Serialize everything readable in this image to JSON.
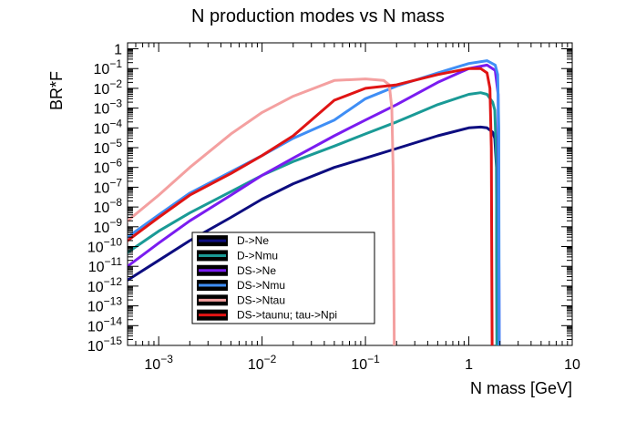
{
  "chart_data": {
    "type": "line",
    "title": "N production modes vs N mass",
    "xlabel": "N mass [GeV]",
    "ylabel": "BR*F",
    "xscale": "log",
    "yscale": "log",
    "xlim": [
      0.0005,
      10
    ],
    "ylim": [
      1e-15,
      2
    ],
    "grid": false,
    "legend_position": "bottom-center",
    "x_ticks": [
      {
        "value": 0.001,
        "base": "10",
        "exp": "−3"
      },
      {
        "value": 0.01,
        "base": "10",
        "exp": "−2"
      },
      {
        "value": 0.1,
        "base": "10",
        "exp": "−1"
      },
      {
        "value": 1,
        "base": "1",
        "exp": ""
      },
      {
        "value": 10,
        "base": "10",
        "exp": ""
      }
    ],
    "y_ticks": [
      {
        "value": 1,
        "base": "1",
        "exp": ""
      },
      {
        "value": 0.1,
        "base": "10",
        "exp": "−1"
      },
      {
        "value": 0.01,
        "base": "10",
        "exp": "−2"
      },
      {
        "value": 0.001,
        "base": "10",
        "exp": "−3"
      },
      {
        "value": 0.0001,
        "base": "10",
        "exp": "−4"
      },
      {
        "value": 1e-05,
        "base": "10",
        "exp": "−5"
      },
      {
        "value": 1e-06,
        "base": "10",
        "exp": "−6"
      },
      {
        "value": 1e-07,
        "base": "10",
        "exp": "−7"
      },
      {
        "value": 1e-08,
        "base": "10",
        "exp": "−8"
      },
      {
        "value": 1e-09,
        "base": "10",
        "exp": "−9"
      },
      {
        "value": 1e-10,
        "base": "10",
        "exp": "−10"
      },
      {
        "value": 1e-11,
        "base": "10",
        "exp": "−11"
      },
      {
        "value": 1e-12,
        "base": "10",
        "exp": "−12"
      },
      {
        "value": 1e-13,
        "base": "10",
        "exp": "−13"
      },
      {
        "value": 1e-14,
        "base": "10",
        "exp": "−14"
      },
      {
        "value": 1e-15,
        "base": "10",
        "exp": "−15"
      }
    ],
    "series": [
      {
        "name": "D->Ne",
        "color": "#0d0d80",
        "x": [
          0.0005,
          0.001,
          0.002,
          0.005,
          0.01,
          0.02,
          0.05,
          0.1,
          0.2,
          0.5,
          1.0,
          1.3,
          1.5,
          1.7,
          1.78,
          1.85,
          1.87
        ],
        "y": [
          2e-12,
          2e-11,
          2e-10,
          3e-09,
          2.5e-08,
          1.5e-07,
          1e-06,
          3e-06,
          9e-06,
          4e-05,
          0.0001,
          0.00011,
          0.0001,
          6e-05,
          3e-05,
          1e-06,
          1e-15
        ]
      },
      {
        "name": "D->Nmu",
        "color": "#1a9a96",
        "x": [
          0.0005,
          0.001,
          0.002,
          0.005,
          0.01,
          0.02,
          0.05,
          0.1,
          0.2,
          0.5,
          1.0,
          1.3,
          1.5,
          1.7,
          1.78,
          1.85,
          1.87
        ],
        "y": [
          5e-11,
          6e-10,
          5e-09,
          6e-08,
          4e-07,
          2e-06,
          1.2e-05,
          5e-05,
          0.0002,
          0.0015,
          0.005,
          0.006,
          0.005,
          0.002,
          0.0008,
          2e-06,
          1e-15
        ]
      },
      {
        "name": "DS->Ne",
        "color": "#7a1cf0",
        "x": [
          0.0005,
          0.001,
          0.002,
          0.005,
          0.01,
          0.02,
          0.05,
          0.1,
          0.2,
          0.5,
          1.0,
          1.5,
          1.8,
          1.92,
          1.97
        ],
        "y": [
          1e-11,
          1.5e-10,
          2e-09,
          4e-08,
          4e-07,
          3e-06,
          4e-05,
          0.00025,
          0.0015,
          0.02,
          0.1,
          0.15,
          0.08,
          0.005,
          1e-15
        ]
      },
      {
        "name": "DS->Nmu",
        "color": "#3f8ef5",
        "x": [
          0.0005,
          0.001,
          0.002,
          0.005,
          0.01,
          0.02,
          0.05,
          0.1,
          0.2,
          0.5,
          1.0,
          1.5,
          1.8,
          1.9,
          1.95,
          1.97
        ],
        "y": [
          3e-10,
          4e-09,
          5e-08,
          6e-07,
          4e-06,
          3e-05,
          0.00025,
          0.003,
          0.013,
          0.06,
          0.18,
          0.25,
          0.15,
          0.05,
          0.0001,
          1e-15
        ]
      },
      {
        "name": "DS->Ntau",
        "color": "#f4a0a0",
        "x": [
          0.0005,
          0.001,
          0.002,
          0.005,
          0.01,
          0.02,
          0.05,
          0.1,
          0.15,
          0.17,
          0.18,
          0.185,
          0.19
        ],
        "y": [
          2e-09,
          4e-08,
          1e-06,
          5e-05,
          0.0006,
          0.004,
          0.025,
          0.03,
          0.025,
          0.015,
          0.001,
          1e-06,
          1e-15
        ]
      },
      {
        "name": "DS->taunu; tau->Npi",
        "color": "#e01414",
        "x": [
          0.0005,
          0.001,
          0.002,
          0.005,
          0.01,
          0.02,
          0.05,
          0.1,
          0.2,
          0.5,
          1.0,
          1.3,
          1.5,
          1.6,
          1.65,
          1.68
        ],
        "y": [
          2e-10,
          3e-09,
          4e-08,
          5e-07,
          4e-06,
          4e-05,
          0.0025,
          0.01,
          0.015,
          0.05,
          0.1,
          0.1,
          0.06,
          0.01,
          1e-05,
          1e-15
        ]
      }
    ]
  }
}
